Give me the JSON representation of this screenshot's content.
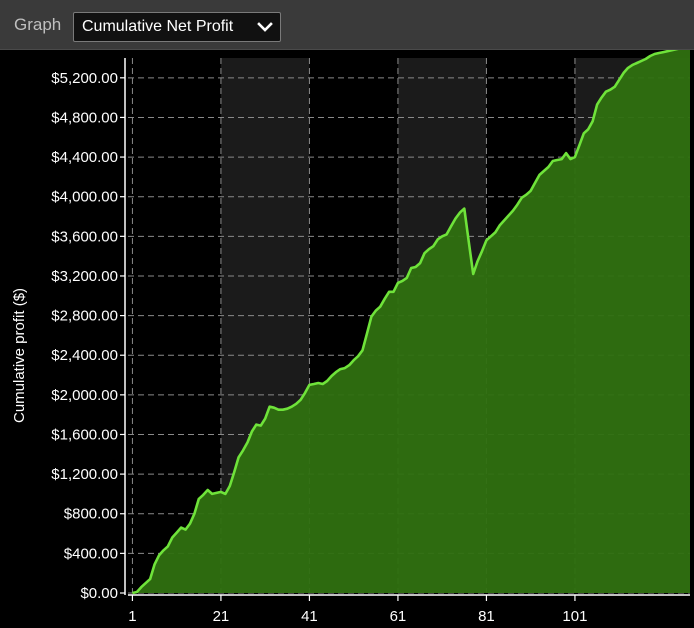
{
  "toolbar": {
    "label": "Graph",
    "selected_graph": "Cumulative Net Profit",
    "dropdown_icon": "chevron-down-icon"
  },
  "colors": {
    "line": "#6fe33a",
    "fill": "#2f7010",
    "band_light": "#1b1b1b",
    "band_dark": "#000000",
    "grid": "#8a8a8a",
    "text": "#ffffff"
  },
  "chart_data": {
    "type": "area",
    "title": "",
    "xlabel": "",
    "ylabel": "Cumulative profit ($)",
    "xlim": [
      0,
      127
    ],
    "ylim": [
      0,
      5400
    ],
    "x_ticks": [
      1,
      21,
      41,
      61,
      81,
      101
    ],
    "x_tick_labels": [
      "1",
      "21",
      "41",
      "61",
      "81",
      "101"
    ],
    "y_ticks": [
      0,
      400,
      800,
      1200,
      1600,
      2000,
      2400,
      2800,
      3200,
      3600,
      4000,
      4400,
      4800,
      5200
    ],
    "y_tick_labels": [
      "$0.00",
      "$400.00",
      "$800.00",
      "$1,200.00",
      "$1,600.00",
      "$2,000.00",
      "$2,400.00",
      "$2,800.00",
      "$3,200.00",
      "$3,600.00",
      "$4,000.00",
      "$4,400.00",
      "$4,800.00",
      "$5,200.00"
    ],
    "grid": true,
    "legend": "none",
    "x": [
      1,
      2,
      3,
      4,
      5,
      6,
      7,
      8,
      9,
      10,
      11,
      12,
      13,
      14,
      15,
      16,
      17,
      18,
      19,
      20,
      21,
      22,
      23,
      24,
      25,
      26,
      27,
      28,
      29,
      30,
      31,
      32,
      33,
      34,
      35,
      36,
      37,
      38,
      39,
      40,
      41,
      42,
      43,
      44,
      45,
      46,
      47,
      48,
      49,
      50,
      51,
      52,
      53,
      54,
      55,
      56,
      57,
      58,
      59,
      60,
      61,
      62,
      63,
      64,
      65,
      66,
      67,
      68,
      69,
      70,
      71,
      72,
      73,
      74,
      75,
      76,
      77,
      78,
      79,
      80,
      81,
      82,
      83,
      84,
      85,
      86,
      87,
      88,
      89,
      90,
      91,
      92,
      93,
      94,
      95,
      96,
      97,
      98,
      99,
      100,
      101,
      102,
      103,
      104,
      105,
      106,
      107,
      108,
      109,
      110,
      111,
      112,
      113,
      114,
      115,
      116,
      117,
      118,
      119,
      120,
      121,
      122,
      123,
      124,
      125,
      126,
      127
    ],
    "values": [
      0,
      10,
      60,
      100,
      140,
      290,
      380,
      430,
      470,
      560,
      610,
      660,
      640,
      700,
      800,
      950,
      990,
      1040,
      1000,
      1010,
      1020,
      1000,
      1080,
      1220,
      1370,
      1440,
      1520,
      1630,
      1700,
      1690,
      1760,
      1880,
      1870,
      1850,
      1850,
      1860,
      1880,
      1910,
      1950,
      2020,
      2100,
      2110,
      2120,
      2110,
      2140,
      2190,
      2230,
      2260,
      2270,
      2300,
      2350,
      2390,
      2450,
      2620,
      2790,
      2850,
      2890,
      2970,
      3040,
      3040,
      3130,
      3150,
      3180,
      3280,
      3290,
      3330,
      3430,
      3470,
      3500,
      3570,
      3600,
      3620,
      3700,
      3780,
      3840,
      3880,
      3550,
      3220,
      3350,
      3450,
      3560,
      3600,
      3640,
      3710,
      3760,
      3810,
      3860,
      3920,
      3990,
      4020,
      4060,
      4140,
      4220,
      4260,
      4300,
      4360,
      4370,
      4380,
      4440,
      4380,
      4400,
      4520,
      4640,
      4680,
      4760,
      4930,
      5000,
      5060,
      5080,
      5110,
      5180,
      5250,
      5300,
      5330,
      5350,
      5370,
      5390,
      5420,
      5440,
      5450,
      5460,
      5470,
      5480,
      5490,
      5500,
      5500,
      5510
    ]
  }
}
